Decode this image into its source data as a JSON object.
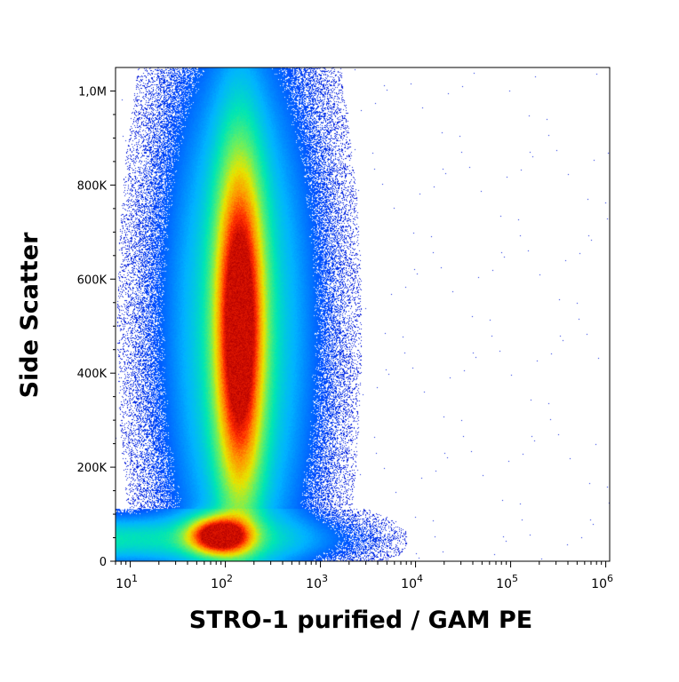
{
  "chart_data": {
    "type": "heatmap",
    "subtype": "flow-cytometry density dot plot",
    "title": "",
    "xlabel": "STRO-1 purified / GAM PE",
    "ylabel": "Side Scatter",
    "x_scale": "log",
    "xlim": [
      7,
      1100000
    ],
    "ylim": [
      0,
      1050000
    ],
    "x_ticks": [
      {
        "value": 10,
        "base": "10",
        "exp": "1"
      },
      {
        "value": 100,
        "base": "10",
        "exp": "2"
      },
      {
        "value": 1000,
        "base": "10",
        "exp": "3"
      },
      {
        "value": 10000,
        "base": "10",
        "exp": "4"
      },
      {
        "value": 100000,
        "base": "10",
        "exp": "5"
      },
      {
        "value": 1000000,
        "base": "10",
        "exp": "6"
      }
    ],
    "y_ticks": [
      {
        "value": 0,
        "label": "0"
      },
      {
        "value": 200000,
        "label": "200K"
      },
      {
        "value": 400000,
        "label": "400K"
      },
      {
        "value": 600000,
        "label": "600K"
      },
      {
        "value": 800000,
        "label": "800K"
      },
      {
        "value": 1000000,
        "label": "1,0M"
      }
    ],
    "populations": [
      {
        "center_x": 140,
        "center_y": 500000,
        "spread_log_x": 0.16,
        "spread_y": 230000,
        "peak_density": "high"
      },
      {
        "center_x": 85,
        "center_y": 55000,
        "spread_log_x": 0.2,
        "spread_y": 25000,
        "peak_density": "high"
      }
    ],
    "color_scale": [
      "#0000c8",
      "#0050ff",
      "#00b4ff",
      "#00e6b4",
      "#64f064",
      "#e6e600",
      "#ff9600",
      "#ff2800",
      "#b40000"
    ],
    "grid": false,
    "legend": "none"
  }
}
